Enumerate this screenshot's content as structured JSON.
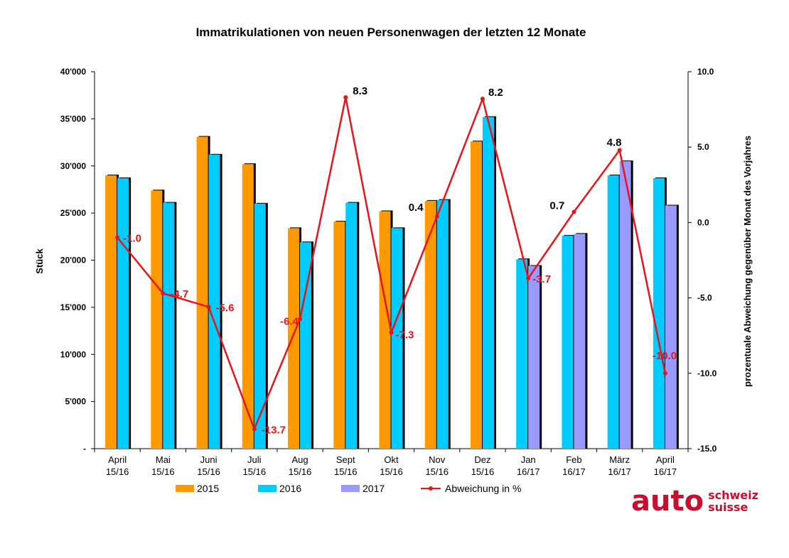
{
  "chart_data": {
    "type": "bar",
    "title": "Immatrikulationen von neuen Personenwagen der letzten 12 Monate",
    "ylabel": "Stück",
    "y2label": "prozentuale Abweichung gegenüber Monat des Vorjahres",
    "ylim": [
      0,
      40000
    ],
    "y2lim": [
      -15,
      10
    ],
    "y_ticks": [
      "-",
      "5'000",
      "10'000",
      "15'000",
      "20'000",
      "25'000",
      "30'000",
      "35'000",
      "40'000"
    ],
    "y2_ticks": [
      "-15.0",
      "-10.0",
      "-5.0",
      "0.0",
      "5.0",
      "10.0"
    ],
    "categories": [
      "April 15/16",
      "Mai 15/16",
      "Juni 15/16",
      "Juli 15/16",
      "Aug 15/16",
      "Sept 15/16",
      "Okt 15/16",
      "Nov 15/16",
      "Dez 15/16",
      "Jan 16/17",
      "Feb 16/17",
      "März 16/17",
      "April 16/17"
    ],
    "category_lines": [
      [
        "April",
        "15/16"
      ],
      [
        "Mai",
        "15/16"
      ],
      [
        "Juni",
        "15/16"
      ],
      [
        "Juli",
        "15/16"
      ],
      [
        "Aug",
        "15/16"
      ],
      [
        "Sept",
        "15/16"
      ],
      [
        "Okt",
        "15/16"
      ],
      [
        "Nov",
        "15/16"
      ],
      [
        "Dez",
        "15/16"
      ],
      [
        "Jan",
        "16/17"
      ],
      [
        "Feb",
        "16/17"
      ],
      [
        "März",
        "16/17"
      ],
      [
        "April",
        "16/17"
      ]
    ],
    "series": [
      {
        "name": "2015",
        "color": "#ff9900",
        "values": [
          29000,
          27400,
          33100,
          30200,
          23400,
          24100,
          25200,
          26300,
          32600,
          null,
          null,
          null,
          null
        ]
      },
      {
        "name": "2016",
        "color": "#00ccff",
        "values": [
          28700,
          26100,
          31200,
          26000,
          21900,
          26100,
          23400,
          26400,
          35200,
          20100,
          22600,
          29000,
          28700
        ]
      },
      {
        "name": "2017",
        "color": "#9999ff",
        "values": [
          null,
          null,
          null,
          null,
          null,
          null,
          null,
          null,
          null,
          19400,
          22800,
          30500,
          25800
        ]
      }
    ],
    "line_series": {
      "name": "Abweichung in %",
      "color": "#e8141c",
      "axis": "right",
      "values": [
        -1.0,
        -4.7,
        -5.6,
        -13.7,
        -6.4,
        8.3,
        -7.3,
        0.4,
        8.2,
        -3.7,
        0.7,
        4.8,
        -10.0
      ],
      "labels": [
        "-1.0",
        "-4.7",
        "-5.6",
        "-13.7",
        "-6.4",
        "8.3",
        "-7.3",
        "0.4",
        "8.2",
        "-3.7",
        "0.7",
        "4.8",
        "-10.0"
      ]
    },
    "legend_position": "bottom",
    "grid": false
  },
  "logo": {
    "big": "auto",
    "line1": "schweiz",
    "line2": "suisse"
  }
}
